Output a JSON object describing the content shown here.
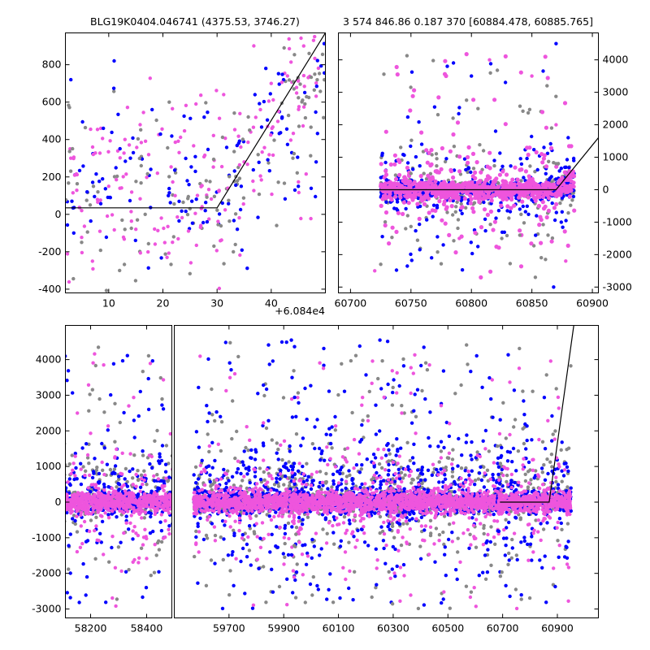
{
  "chart_data": [
    {
      "type": "scatter",
      "title": "BLG19K0404.046741 (4375.53, 3746.27)",
      "xlim": [
        2,
        50
      ],
      "ylim": [
        -420,
        970
      ],
      "x_ticks": [
        10,
        20,
        30,
        40
      ],
      "y_ticks": [
        -400,
        -200,
        0,
        200,
        400,
        600,
        800
      ],
      "x_offset_label": "+6.084e4",
      "y_axis_side": "left",
      "model_line": [
        [
          2,
          35
        ],
        [
          30,
          35
        ],
        [
          50,
          970
        ]
      ],
      "series": [
        {
          "color": "#888888",
          "description": "grey points"
        },
        {
          "color": "#0000ff",
          "description": "blue points"
        },
        {
          "color": "#ee55dd",
          "description": "magenta points"
        }
      ],
      "sample_points": {
        "grey": [
          [
            5,
            -150
          ],
          [
            8,
            120
          ],
          [
            12,
            -300
          ],
          [
            16,
            260
          ],
          [
            22,
            -120
          ],
          [
            25,
            30
          ],
          [
            28,
            180
          ],
          [
            33,
            -200
          ],
          [
            36,
            450
          ],
          [
            41,
            -60
          ],
          [
            44,
            300
          ],
          [
            47,
            860
          ]
        ],
        "blue": [
          [
            3,
            720
          ],
          [
            6,
            120
          ],
          [
            9,
            460
          ],
          [
            11,
            820
          ],
          [
            14,
            300
          ],
          [
            18,
            560
          ],
          [
            21,
            100
          ],
          [
            26,
            230
          ],
          [
            31,
            60
          ],
          [
            34,
            380
          ],
          [
            37,
            640
          ],
          [
            39,
            780
          ],
          [
            42,
            520
          ],
          [
            45,
            150
          ]
        ],
        "magenta": [
          [
            3,
            300
          ],
          [
            5,
            20
          ],
          [
            7,
            -250
          ],
          [
            10,
            150
          ],
          [
            13,
            400
          ],
          [
            15,
            -80
          ],
          [
            19,
            220
          ],
          [
            23,
            330
          ],
          [
            27,
            -60
          ],
          [
            32,
            140
          ],
          [
            35,
            280
          ],
          [
            38,
            560
          ],
          [
            40,
            700
          ],
          [
            43,
            740
          ],
          [
            46,
            900
          ],
          [
            48,
            950
          ]
        ]
      }
    },
    {
      "type": "scatter",
      "title": "3 574 846.86 0.187 370 [60884.478, 60885.765]",
      "xlim": [
        60690,
        60905
      ],
      "ylim": [
        -3180,
        4830
      ],
      "x_ticks": [
        60700,
        60750,
        60800,
        60850,
        60900
      ],
      "y_ticks": [
        -3000,
        -2000,
        -1000,
        0,
        1000,
        2000,
        3000,
        4000
      ],
      "y_axis_side": "right",
      "model_line": [
        [
          60690,
          0
        ],
        [
          60870,
          0
        ],
        [
          60905,
          1600
        ]
      ],
      "series": [
        {
          "color": "#888888",
          "description": "grey points"
        },
        {
          "color": "#0000ff",
          "description": "blue points"
        },
        {
          "color": "#ee55dd",
          "description": "magenta points"
        }
      ],
      "sample_points": {
        "grey": [
          [
            60725,
            -2300
          ],
          [
            60750,
            500
          ],
          [
            60780,
            -700
          ],
          [
            60810,
            1200
          ],
          [
            60840,
            -1400
          ],
          [
            60870,
            800
          ]
        ],
        "blue": [
          [
            60730,
            300
          ],
          [
            60760,
            -100
          ],
          [
            60780,
            3800
          ],
          [
            60800,
            3500
          ],
          [
            60820,
            1800
          ],
          [
            60840,
            -600
          ],
          [
            60860,
            1300
          ],
          [
            60870,
            4500
          ],
          [
            60880,
            1600
          ],
          [
            60868,
            -3000
          ]
        ],
        "magenta": [
          [
            60720,
            -2500
          ],
          [
            60745,
            -200
          ],
          [
            60790,
            -1500
          ],
          [
            60815,
            4000
          ],
          [
            60850,
            3500
          ],
          [
            60870,
            2000
          ],
          [
            60878,
            -2200
          ]
        ]
      }
    },
    {
      "type": "scatter",
      "title": "",
      "broken_x_axis": true,
      "ylim": [
        -3250,
        4960
      ],
      "y_ticks": [
        -3000,
        -2000,
        -1000,
        0,
        1000,
        2000,
        3000,
        4000
      ],
      "panels": [
        {
          "xlim": [
            58110,
            58490
          ],
          "x_ticks": [
            58200,
            58400
          ],
          "season_center": 58300,
          "season_halfwidth": 195
        },
        {
          "xlim": [
            59500,
            61050
          ],
          "x_ticks": [
            59700,
            59900,
            60100,
            60300,
            60500,
            60700,
            60900
          ],
          "seasons": [
            {
              "center": 59770,
              "halfwidth": 200
            },
            {
              "center": 60130,
              "halfwidth": 210
            },
            {
              "center": 60490,
              "halfwidth": 210
            },
            {
              "center": 60815,
              "halfwidth": 135
            }
          ],
          "model_line": [
            [
              60690,
              0
            ],
            [
              60870,
              0
            ],
            [
              60960,
              4960
            ]
          ]
        }
      ],
      "series": [
        {
          "color": "#888888",
          "description": "grey points"
        },
        {
          "color": "#0000ff",
          "description": "blue points"
        },
        {
          "color": "#ee55dd",
          "description": "magenta points"
        }
      ],
      "flux_scatter": {
        "baseline": 0,
        "core_sigma": 160,
        "outlier_range": [
          -3000,
          4600
        ]
      }
    }
  ],
  "colors": {
    "grey": "#888888",
    "blue": "#0000ff",
    "magenta": "#ee55dd",
    "line": "#000000"
  }
}
